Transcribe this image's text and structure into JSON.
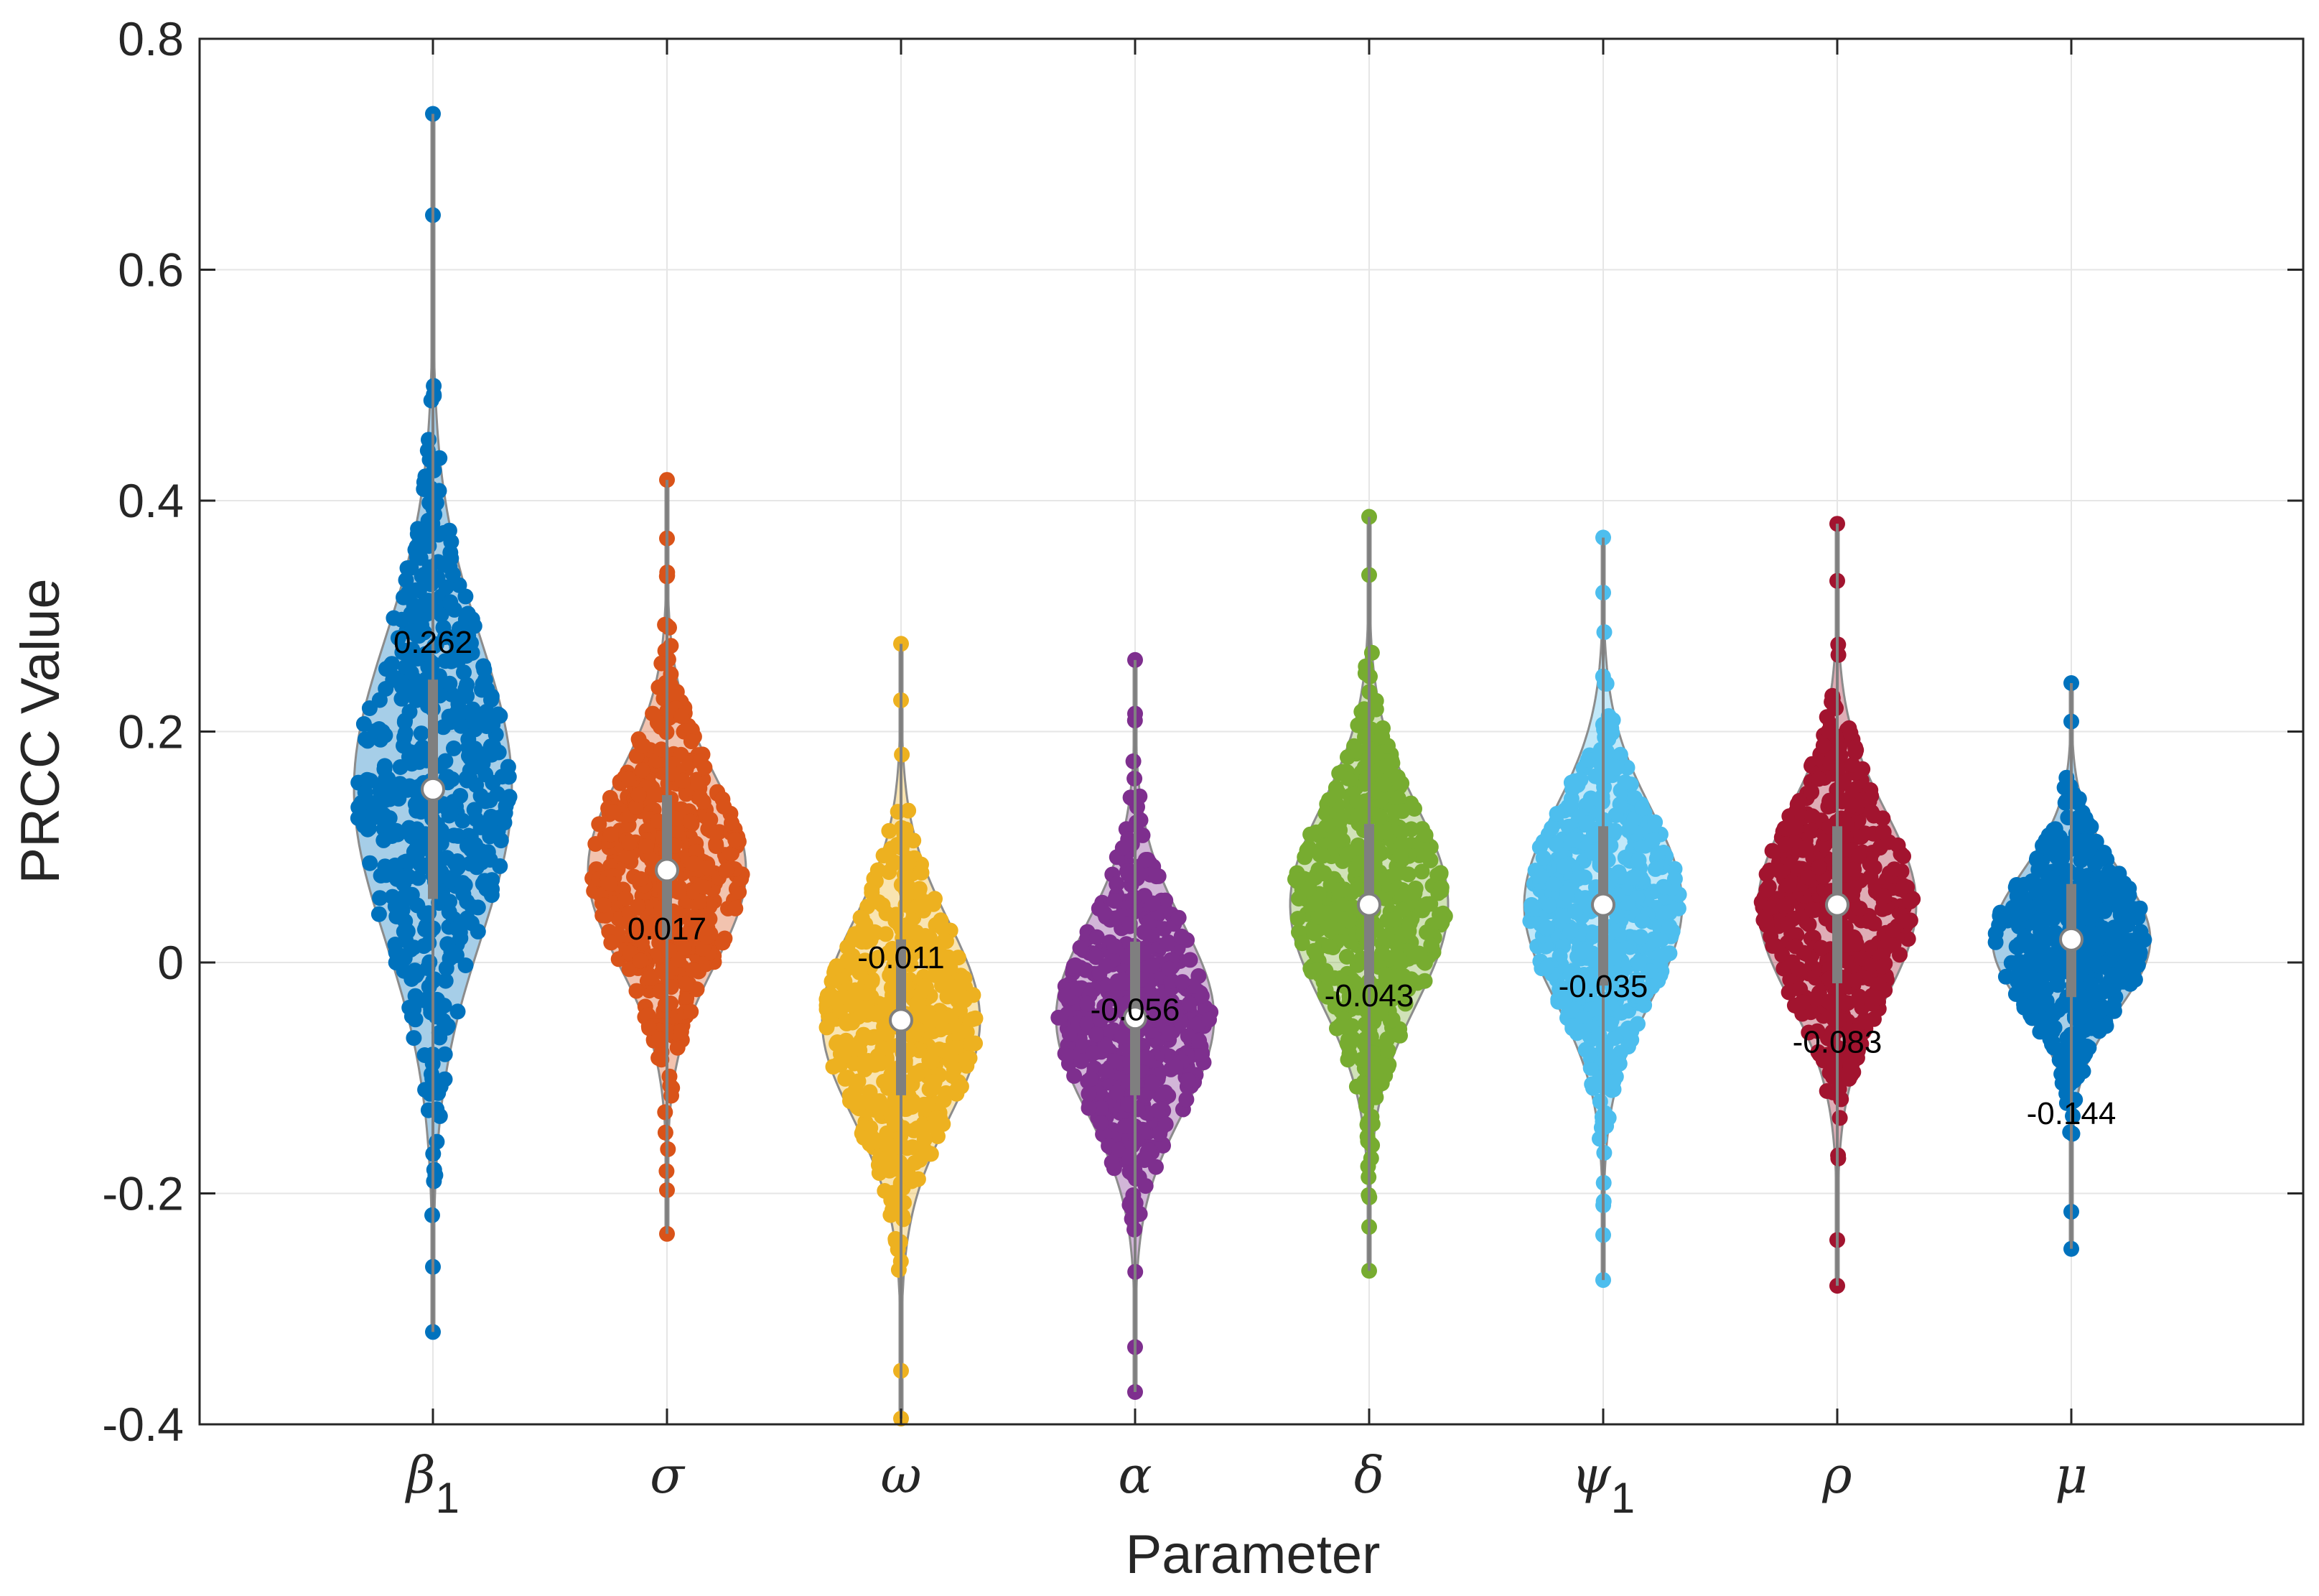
{
  "chart_data": {
    "type": "violin",
    "title": "",
    "xlabel": "Parameter",
    "ylabel": "PRCC Value",
    "ylim": [
      -0.4,
      0.8
    ],
    "yticks": [
      -0.4,
      -0.2,
      0,
      0.2,
      0.4,
      0.6,
      0.8
    ],
    "ytick_labels": [
      "-0.4",
      "-0.2",
      "0",
      "0.2",
      "0.4",
      "0.6",
      "0.8"
    ],
    "grid": true,
    "series": [
      {
        "name": "β1",
        "symbol": "β",
        "subscript": "1",
        "color": "#0072BD",
        "median": 0.15,
        "q1": 0.055,
        "q3": 0.245,
        "min": -0.32,
        "max": 0.735,
        "spread": 0.13,
        "annotation": "0.262",
        "annotation_y": 0.278
      },
      {
        "name": "σ",
        "symbol": "σ",
        "subscript": "",
        "color": "#D95319",
        "median": 0.08,
        "q1": 0.02,
        "q3": 0.145,
        "min": -0.235,
        "max": 0.418,
        "spread": 0.082,
        "annotation": "0.017",
        "annotation_y": 0.03
      },
      {
        "name": "ω",
        "symbol": "ω",
        "subscript": "",
        "color": "#EDB120",
        "median": -0.05,
        "q1": -0.115,
        "q3": 0.02,
        "min": -0.395,
        "max": 0.276,
        "spread": 0.085,
        "annotation": "-0.011",
        "annotation_y": 0.005
      },
      {
        "name": "α",
        "symbol": "α",
        "subscript": "",
        "color": "#7E2F8E",
        "median": -0.048,
        "q1": -0.115,
        "q3": 0.018,
        "min": -0.372,
        "max": 0.262,
        "spread": 0.082,
        "annotation": "-0.056",
        "annotation_y": -0.04
      },
      {
        "name": "δ",
        "symbol": "δ",
        "subscript": "",
        "color": "#77AC30",
        "median": 0.05,
        "q1": -0.02,
        "q3": 0.12,
        "min": -0.267,
        "max": 0.386,
        "spread": 0.085,
        "annotation": "-0.043",
        "annotation_y": -0.028
      },
      {
        "name": "ψ1",
        "symbol": "ψ",
        "subscript": "1",
        "color": "#4DBEEE",
        "median": 0.05,
        "q1": -0.02,
        "q3": 0.118,
        "min": -0.275,
        "max": 0.368,
        "spread": 0.083,
        "annotation": "-0.035",
        "annotation_y": -0.02
      },
      {
        "name": "ρ",
        "symbol": "ρ",
        "subscript": "",
        "color": "#A2142F",
        "median": 0.05,
        "q1": -0.018,
        "q3": 0.118,
        "min": -0.28,
        "max": 0.38,
        "spread": 0.082,
        "annotation": "-0.083",
        "annotation_y": -0.068
      },
      {
        "name": "μ",
        "symbol": "μ",
        "subscript": "",
        "color": "#0072BD",
        "median": 0.02,
        "q1": -0.03,
        "q3": 0.068,
        "min": -0.248,
        "max": 0.242,
        "spread": 0.06,
        "annotation": "-0.144",
        "annotation_y": -0.13
      }
    ]
  }
}
